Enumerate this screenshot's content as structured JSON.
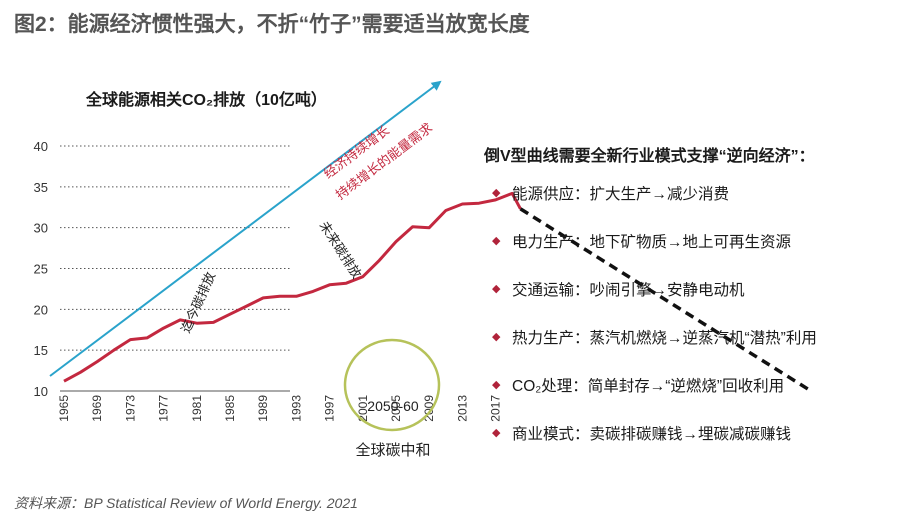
{
  "page": {
    "title": "图2：能源经济惯性强大，不折“竹子”需要适当放宽长度",
    "source": "资料来源：BP Statistical Review of World Energy. 2021"
  },
  "chart_data": {
    "type": "line",
    "title": "全球能源相关CO₂排放（10亿吨）",
    "xlabel": "",
    "ylabel": "",
    "ylim": [
      10,
      40
    ],
    "yticks": [
      10,
      15,
      20,
      25,
      30,
      35,
      40
    ],
    "xticks": [
      "1965",
      "1969",
      "1973",
      "1977",
      "1981",
      "1985",
      "1989",
      "1993",
      "1997",
      "2001",
      "2005",
      "2009",
      "2013",
      "2017"
    ],
    "grid": "horizontal dotted",
    "series": [
      {
        "name": "迄今碳排放",
        "color": "#c3283f",
        "x": [
          1965,
          1967,
          1969,
          1971,
          1973,
          1975,
          1977,
          1979,
          1981,
          1983,
          1985,
          1987,
          1989,
          1991,
          1993,
          1995,
          1997,
          1999,
          2001,
          2003,
          2005,
          2007,
          2009,
          2011,
          2013,
          2015,
          2017,
          2019,
          2020
        ],
        "y": [
          11.2,
          12.3,
          13.6,
          15.0,
          16.3,
          16.5,
          17.7,
          18.7,
          18.3,
          18.4,
          19.4,
          20.4,
          21.4,
          21.6,
          21.6,
          22.2,
          23.0,
          23.2,
          24.0,
          26.0,
          28.3,
          30.1,
          30.0,
          32.1,
          32.9,
          33.0,
          33.4,
          34.2,
          32.3
        ]
      },
      {
        "name": "未来碳排放",
        "color": "#111111",
        "x": [
          2020,
          2055
        ],
        "y": [
          32.3,
          10.0
        ]
      }
    ],
    "annotations": {
      "arrow_label_1": "经济持续增长",
      "arrow_label_2": "持续增长的能量需求",
      "past_label": "迄今碳排放",
      "future_label": "未来碳排放",
      "target_period": "2050-60",
      "target_label": "全球碳中和"
    },
    "colors": {
      "arrow": "#2aa3cb",
      "series": "#c3283f",
      "circle": "#b6c25a"
    }
  },
  "right_panel": {
    "title": "倒V型曲线需要全新行业模式支撑“逆向经济”：",
    "items": [
      "能源供应：扩大生产→减少消费",
      "电力生产：地下矿物质→地上可再生资源",
      "交通运输：吵闹引擎→安静电动机",
      "热力生产：蒸汽机燃烧→逆蒸汽机“潜热”利用",
      "CO₂处理：简单封存→“逆燃烧”回收利用",
      "商业模式：卖碳排碳赚钱→埋碳减碳赚钱"
    ]
  }
}
